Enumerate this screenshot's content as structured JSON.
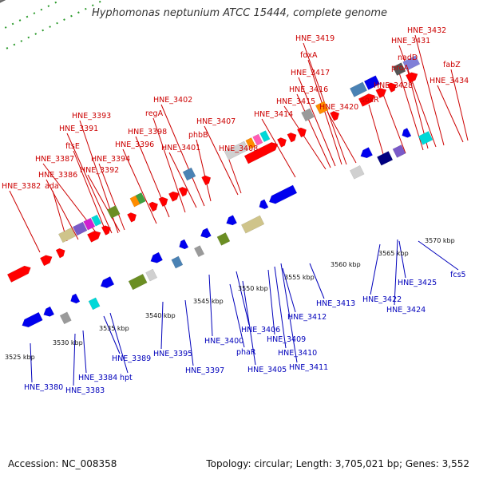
{
  "header": {
    "title": "Hyphomonas neptunium ATCC 15444, complete genome"
  },
  "footer": {
    "accession": "Accession: NC_008358",
    "summary": "Topology: circular; Length: 3,705,021 bp; Genes: 3,552"
  },
  "colors": {
    "forward_label": "#cc0000",
    "reverse_label": "#0000bb",
    "backbone": "#888888",
    "tick_dots": "#2a9a2a"
  },
  "scale": {
    "ticks": [
      "3525 kbp",
      "3530 kbp",
      "3535 kbp",
      "3540 kbp",
      "3545 kbp",
      "3550 kbp",
      "3555 kbp",
      "3560 kbp",
      "3565 kbp",
      "3570 kbp"
    ]
  },
  "forward_labels": [
    "HNE_3382",
    "ada",
    "HNE_3386",
    "HNE_3387",
    "ftsE",
    "HNE_3391",
    "HNE_3393",
    "HNE_3392",
    "HNE_3394",
    "HNE_3396",
    "HNE_3398",
    "regA",
    "HNE_3401",
    "HNE_3402",
    "phbB",
    "HNE_3407",
    "HNE_3408",
    "HNE_3414",
    "HNE_3415",
    "HNE_3416",
    "HNE_3417",
    "fdxA",
    "HNE_3419",
    "HNE_3420",
    "soxR",
    "HNE_3428",
    "proA",
    "nadD",
    "HNE_3431",
    "HNE_3432",
    "HNE_3434",
    "fabZ"
  ],
  "reverse_labels": [
    "HNE_3380",
    "HNE_3383",
    "HNE_3384",
    "hpt",
    "HNE_3389",
    "HNE_3395",
    "HNE_3397",
    "HNE_3400",
    "phaR",
    "HNE_3406",
    "HNE_3405",
    "HNE_3409",
    "HNE_3410",
    "HNE_3411",
    "HNE_3412",
    "HNE_3413",
    "HNE_3422",
    "HNE_3424",
    "HNE_3425",
    "fcs5"
  ]
}
